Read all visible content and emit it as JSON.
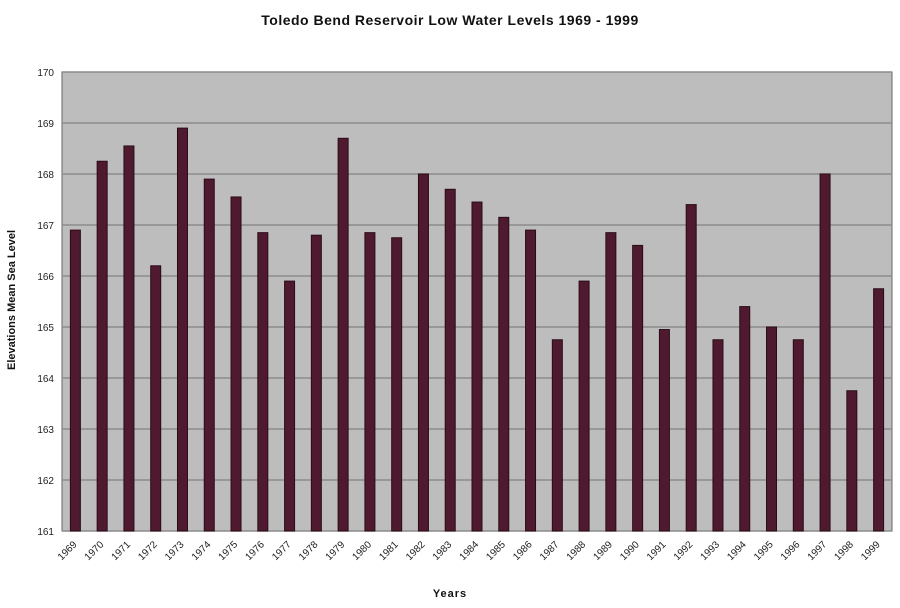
{
  "chart_data": {
    "type": "bar",
    "title": "Toledo Bend Reservoir Low Water Levels 1969 - 1999",
    "xlabel": "Years",
    "ylabel": "Elevations Mean Sea Level",
    "ylim": [
      161,
      170
    ],
    "yticks": [
      161,
      162,
      163,
      164,
      165,
      166,
      167,
      168,
      169,
      170
    ],
    "grid": true,
    "categories": [
      "1969",
      "1970",
      "1971",
      "1972",
      "1973",
      "1974",
      "1975",
      "1976",
      "1977",
      "1978",
      "1979",
      "1980",
      "1981",
      "1982",
      "1983",
      "1984",
      "1985",
      "1986",
      "1987",
      "1988",
      "1989",
      "1990",
      "1991",
      "1992",
      "1993",
      "1994",
      "1995",
      "1996",
      "1997",
      "1998",
      "1999"
    ],
    "values": [
      166.9,
      168.25,
      168.55,
      166.2,
      168.9,
      167.9,
      167.55,
      166.85,
      165.9,
      166.8,
      168.7,
      166.85,
      166.75,
      168.0,
      167.7,
      167.45,
      167.15,
      166.9,
      164.75,
      165.9,
      166.85,
      166.6,
      164.95,
      167.4,
      164.75,
      165.4,
      165.0,
      164.75,
      168.0,
      163.75,
      165.75
    ],
    "colors": {
      "bar": "#4f1a30",
      "plot_bg": "#bdbdbd",
      "grid": "#8c8c8c"
    }
  }
}
